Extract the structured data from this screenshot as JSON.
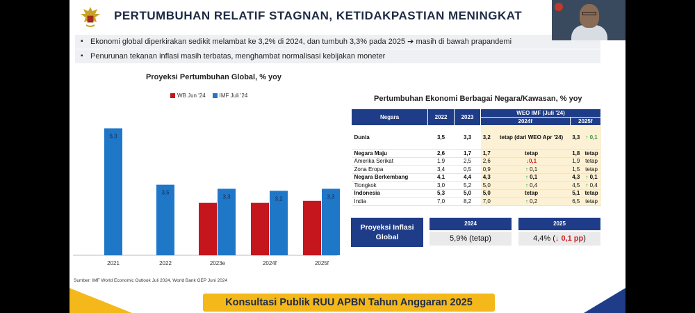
{
  "slide": {
    "title": "PERTUMBUHAN RELATIF STAGNAN, KETIDAKPASTIAN MENINGKAT",
    "bullets": [
      "Ekonomi global diperkirakan sedikit melambat ke 3,2% di 2024, dan tumbuh 3,3% pada 2025 ➔ masih di bawah prapandemi",
      "Penurunan tekanan inflasi masih terbatas, menghambat normalisasi kebijakan moneter"
    ],
    "source": "Sumber:  IMF World Economic Outlook Juli 2024, World Bank GEP Juni 2024",
    "footer": "Konsultasi Publik RUU APBN Tahun Anggaran 2025"
  },
  "colors": {
    "wb": "#c4161c",
    "imf": "#1f77c8",
    "navy": "#1f3c88",
    "gold": "#f4b81a"
  },
  "chart_data": {
    "type": "bar",
    "title": "Proyeksi Pertumbuhan Global, % yoy",
    "categories": [
      "2021",
      "2022",
      "2023e",
      "2024f",
      "2025f"
    ],
    "series": [
      {
        "name": "WB Jun '24",
        "values": [
          null,
          null,
          2.6,
          2.6,
          2.7
        ]
      },
      {
        "name": "IMF Juli '24",
        "values": [
          6.3,
          3.5,
          3.3,
          3.2,
          3.3
        ]
      }
    ],
    "data_labels": [
      "6,3",
      "3,5",
      "3,3",
      "3,2",
      "3,3"
    ],
    "ylim": [
      0,
      6.8
    ],
    "legend": "top-center",
    "grid": false
  },
  "table": {
    "title": "Pertumbuhan Ekonomi Berbagai Negara/Kawasan, % yoy",
    "headers": {
      "negara": "Negara",
      "y2022": "2022",
      "y2023": "2023",
      "weo": "WEO IMF (Juli '24)",
      "f2024": "2024f",
      "f2025": "2025f"
    },
    "rows": [
      {
        "name": "Dunia",
        "a": "3,5",
        "b": "3,3",
        "c": "3,2",
        "d": "tetap (dari WEO Apr '24)",
        "e": "3,3",
        "f": "0,1",
        "d_dir": "",
        "f_dir": "up",
        "bold": true,
        "tall": true
      },
      {
        "name": "Negara Maju",
        "a": "2,6",
        "b": "1,7",
        "c": "1,7",
        "d": "tetap",
        "e": "1,8",
        "f": "tetap",
        "d_dir": "",
        "f_dir": "",
        "bold": true
      },
      {
        "name": "Amerika Serikat",
        "a": "1,9",
        "b": "2,5",
        "c": "2,6",
        "d": "0,1",
        "e": "1,9",
        "f": "tetap",
        "d_dir": "down",
        "f_dir": "",
        "bold": false
      },
      {
        "name": "Zona Eropa",
        "a": "3,4",
        "b": "0,5",
        "c": "0,9",
        "d": "0,1",
        "e": "1,5",
        "f": "tetap",
        "d_dir": "up",
        "f_dir": "",
        "bold": false
      },
      {
        "name": "Negara Berkembang",
        "a": "4,1",
        "b": "4,4",
        "c": "4,3",
        "d": "0,1",
        "e": "4,3",
        "f": "0,1",
        "d_dir": "up",
        "f_dir": "up",
        "bold": true
      },
      {
        "name": "Tiongkok",
        "a": "3,0",
        "b": "5,2",
        "c": "5,0",
        "d": "0,4",
        "e": "4,5",
        "f": "0,4",
        "d_dir": "up",
        "f_dir": "up",
        "bold": false
      },
      {
        "name": "Indonesia",
        "a": "5,3",
        "b": "5,0",
        "c": "5,0",
        "d": "tetap",
        "e": "5,1",
        "f": "tetap",
        "d_dir": "",
        "f_dir": "",
        "bold": true
      },
      {
        "name": "India",
        "a": "7,0",
        "b": "8,2",
        "c": "7,0",
        "d": "0,2",
        "e": "6,5",
        "f": "tetap",
        "d_dir": "up",
        "f_dir": "",
        "bold": false
      }
    ]
  },
  "inflation": {
    "label": "Proyeksi Inflasi Global",
    "y2024_label": "2024",
    "y2025_label": "2025",
    "y2024_value": "5,9% (tetap)",
    "y2025_prefix": "4,4% (",
    "y2025_change": "0,1 pp",
    "y2025_suffix": ")"
  }
}
